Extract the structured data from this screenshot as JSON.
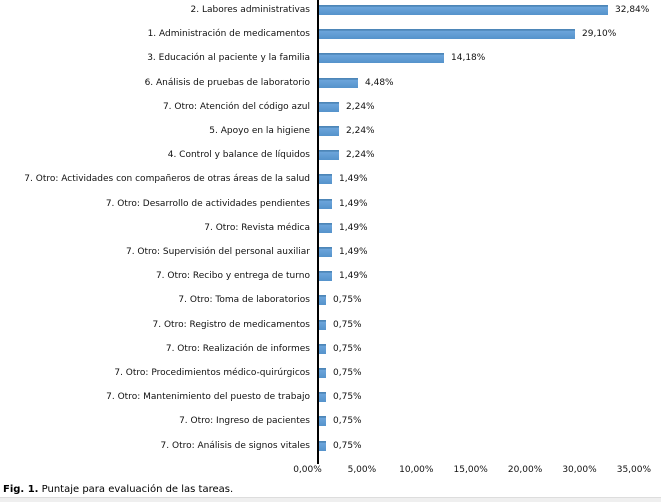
{
  "figure": {
    "caption_prefix": "Fig. 1.",
    "caption_text": " Puntaje para evaluación de las tareas."
  },
  "chart_data": {
    "type": "bar",
    "orientation": "horizontal",
    "title": "",
    "xlabel": "",
    "ylabel": "",
    "xlim": [
      0,
      35
    ],
    "grid": false,
    "legend_position": "none",
    "bar_color": "#5b9ad0",
    "axis_color": "#000000",
    "categories": [
      "2. Labores administrativas",
      "1. Administración de medicamentos",
      "3. Educación al paciente y la familia",
      "6. Análisis de pruebas de laboratorio",
      "7. Otro: Atención del código azul",
      "5. Apoyo en la higiene",
      "4. Control y balance de líquidos",
      "7. Otro: Actividades con compañeros de otras áreas de la salud",
      "7. Otro: Desarrollo de actividades pendientes",
      "7. Otro: Revista médica",
      "7. Otro: Supervisión del personal auxiliar",
      "7. Otro: Recibo y entrega de turno",
      "7. Otro: Toma de laboratorios",
      "7. Otro: Registro de medicamentos",
      "7. Otro: Realización de informes",
      "7. Otro: Procedimientos médico-quirúrgicos",
      "7. Otro: Mantenimiento del puesto de trabajo",
      "7. Otro: Ingreso de pacientes",
      "7. Otro: Análisis de signos vitales"
    ],
    "values": [
      32.84,
      29.1,
      14.18,
      4.48,
      2.24,
      2.24,
      2.24,
      1.49,
      1.49,
      1.49,
      1.49,
      1.49,
      0.75,
      0.75,
      0.75,
      0.75,
      0.75,
      0.75,
      0.75
    ],
    "value_labels": [
      "32,84%",
      "29,10%",
      "14,18%",
      "4,48%",
      "2,24%",
      "2,24%",
      "2,24%",
      "1,49%",
      "1,49%",
      "1,49%",
      "1,49%",
      "1,49%",
      "0,75%",
      "0,75%",
      "0,75%",
      "0,75%",
      "0,75%",
      "0,75%",
      "0,75%"
    ],
    "xticklabels": [
      "0,00%",
      "5,00%",
      "10,00%",
      "15,00%",
      "20,00%",
      "30,00%",
      "35,00%"
    ]
  }
}
